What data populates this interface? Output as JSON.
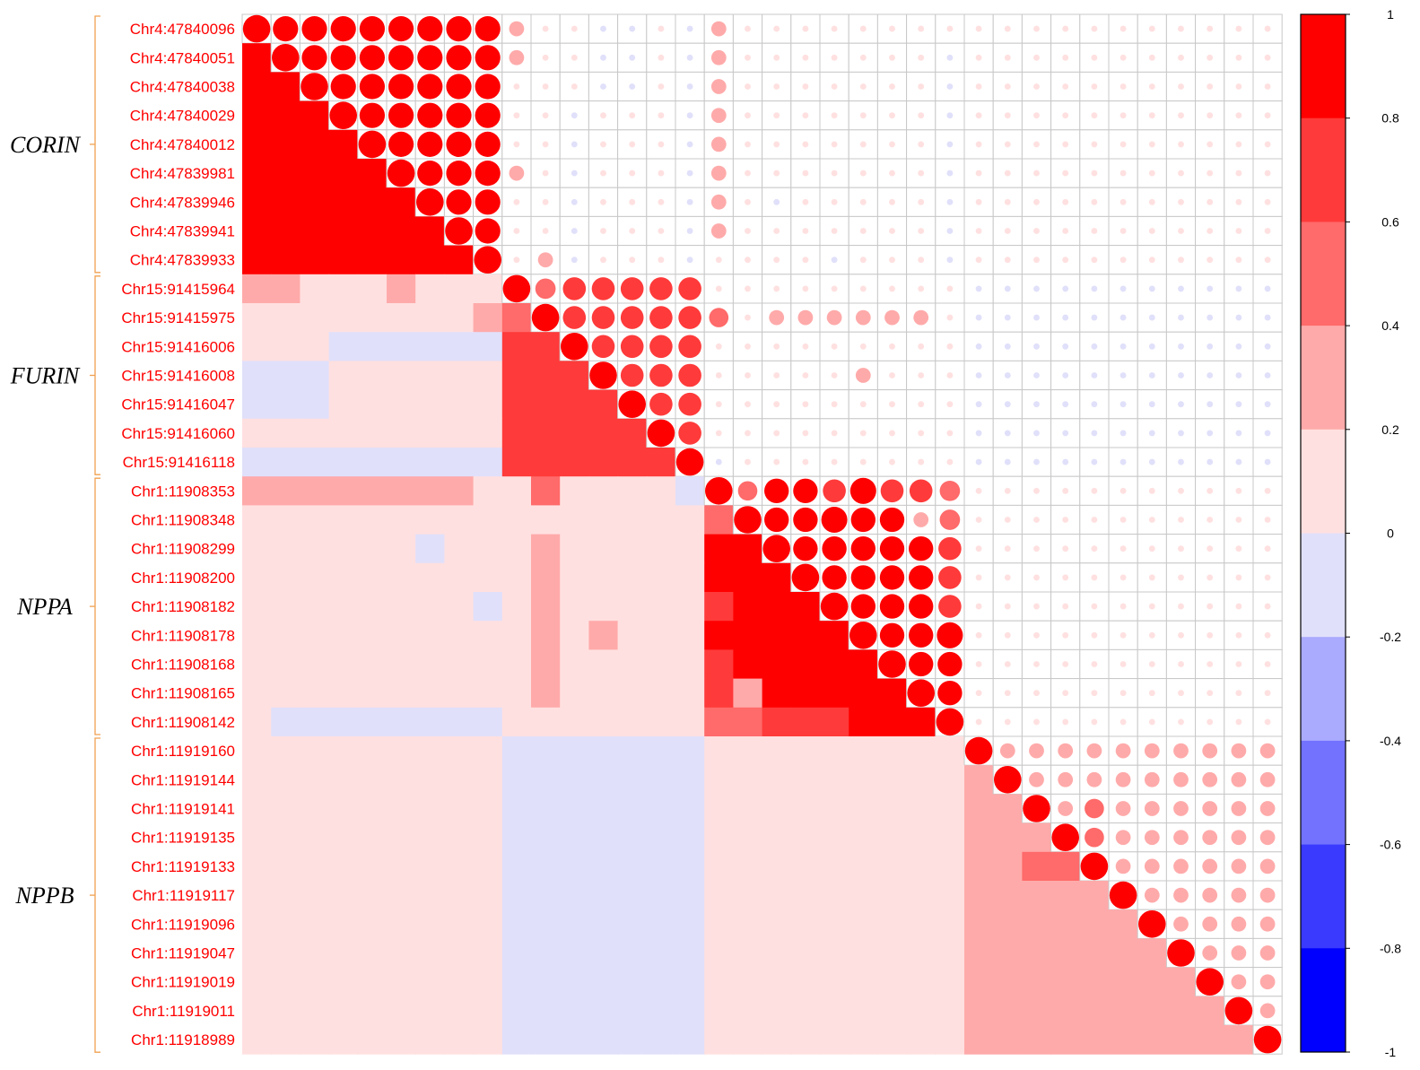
{
  "chart_data": {
    "type": "heatmap",
    "title": "",
    "xlabel": "",
    "ylabel": "",
    "variables": [
      "Chr4:47840096",
      "Chr4:47840051",
      "Chr4:47840038",
      "Chr4:47840029",
      "Chr4:47840012",
      "Chr4:47839981",
      "Chr4:47839946",
      "Chr4:47839941",
      "Chr4:47839933",
      "Chr15:91415964",
      "Chr15:91415975",
      "Chr15:91416006",
      "Chr15:91416008",
      "Chr15:91416047",
      "Chr15:91416060",
      "Chr15:91416118",
      "Chr1:11908353",
      "Chr1:11908348",
      "Chr1:11908299",
      "Chr1:11908200",
      "Chr1:11908182",
      "Chr1:11908178",
      "Chr1:11908168",
      "Chr1:11908165",
      "Chr1:11908142",
      "Chr1:11919160",
      "Chr1:11919144",
      "Chr1:11919141",
      "Chr1:11919135",
      "Chr1:11919133",
      "Chr1:11919117",
      "Chr1:11919096",
      "Chr1:11919047",
      "Chr1:11919019",
      "Chr1:11919011",
      "Chr1:11918989"
    ],
    "groups": [
      {
        "name": "CORIN",
        "start": 0,
        "end": 8
      },
      {
        "name": "FURIN",
        "start": 9,
        "end": 15
      },
      {
        "name": "NPPA",
        "start": 16,
        "end": 24
      },
      {
        "name": "NPPB",
        "start": 25,
        "end": 35
      }
    ],
    "colorbar": {
      "ticks": [
        "1",
        "0.8",
        "0.6",
        "0.4",
        "0.2",
        "0",
        "-0.2",
        "-0.4",
        "-0.6",
        "-0.8",
        "-1"
      ],
      "range": [
        -1,
        1
      ],
      "bins": 10
    },
    "lower_triangle": "colored squares",
    "upper_triangle": "circles sized by |r|",
    "colors": {
      "bins_high_to_low": [
        "#ff0000",
        "#ff3a3a",
        "#ff6a6a",
        "#ffaaaa",
        "#ffe0e0",
        "#e0e0fa",
        "#aaaaff",
        "#7272ff",
        "#3a3aff",
        "#0000ff"
      ],
      "grid": "#c8c8c8",
      "label": "#ff0000",
      "bracket": "#f0a050"
    },
    "block_values": [
      [
        0.85,
        0.05,
        0.05,
        0.05
      ],
      [
        0.05,
        0.7,
        0.05,
        -0.05
      ],
      [
        0.05,
        0.05,
        0.8,
        0.05
      ],
      [
        0.05,
        -0.05,
        0.05,
        0.3
      ]
    ],
    "overrides": [
      [
        9,
        0,
        0.3
      ],
      [
        9,
        1,
        0.3
      ],
      [
        9,
        5,
        0.3
      ],
      [
        10,
        8,
        0.3
      ],
      [
        10,
        9,
        0.55
      ],
      [
        11,
        3,
        -0.05
      ],
      [
        11,
        4,
        -0.05
      ],
      [
        11,
        5,
        -0.05
      ],
      [
        11,
        6,
        -0.05
      ],
      [
        11,
        7,
        -0.05
      ],
      [
        11,
        8,
        -0.05
      ],
      [
        12,
        0,
        -0.05
      ],
      [
        12,
        1,
        -0.05
      ],
      [
        12,
        2,
        -0.05
      ],
      [
        13,
        0,
        -0.05
      ],
      [
        13,
        1,
        -0.05
      ],
      [
        13,
        2,
        -0.05
      ],
      [
        15,
        0,
        -0.05
      ],
      [
        15,
        1,
        -0.05
      ],
      [
        15,
        2,
        -0.05
      ],
      [
        15,
        3,
        -0.05
      ],
      [
        15,
        4,
        -0.05
      ],
      [
        15,
        5,
        -0.05
      ],
      [
        15,
        6,
        -0.05
      ],
      [
        15,
        7,
        -0.05
      ],
      [
        15,
        8,
        -0.05
      ],
      [
        16,
        0,
        0.3
      ],
      [
        16,
        1,
        0.3
      ],
      [
        16,
        2,
        0.3
      ],
      [
        16,
        3,
        0.3
      ],
      [
        16,
        4,
        0.3
      ],
      [
        16,
        5,
        0.3
      ],
      [
        16,
        6,
        0.3
      ],
      [
        16,
        7,
        0.3
      ],
      [
        16,
        10,
        0.5
      ],
      [
        18,
        10,
        0.3
      ],
      [
        19,
        10,
        0.3
      ],
      [
        20,
        10,
        0.3
      ],
      [
        21,
        10,
        0.3
      ],
      [
        22,
        10,
        0.3
      ],
      [
        23,
        10,
        0.3
      ],
      [
        21,
        12,
        0.3
      ],
      [
        18,
        6,
        -0.05
      ],
      [
        20,
        8,
        -0.05
      ],
      [
        16,
        15,
        -0.05
      ],
      [
        24,
        1,
        -0.05
      ],
      [
        24,
        2,
        -0.05
      ],
      [
        24,
        3,
        -0.05
      ],
      [
        24,
        4,
        -0.05
      ],
      [
        24,
        5,
        -0.05
      ],
      [
        24,
        6,
        -0.05
      ],
      [
        24,
        7,
        -0.05
      ],
      [
        24,
        8,
        -0.05
      ],
      [
        17,
        16,
        0.5
      ],
      [
        23,
        16,
        0.7
      ],
      [
        23,
        17,
        0.3
      ],
      [
        24,
        16,
        0.55
      ],
      [
        24,
        17,
        0.55
      ],
      [
        24,
        18,
        0.7
      ],
      [
        24,
        19,
        0.7
      ],
      [
        24,
        20,
        0.7
      ],
      [
        24,
        21,
        0.9
      ],
      [
        21,
        16,
        0.9
      ],
      [
        22,
        16,
        0.7
      ],
      [
        20,
        17,
        0.9
      ],
      [
        20,
        16,
        0.7
      ],
      [
        26,
        25,
        0.3
      ],
      [
        27,
        25,
        0.3
      ],
      [
        27,
        26,
        0.3
      ],
      [
        28,
        25,
        0.3
      ],
      [
        28,
        26,
        0.3
      ],
      [
        28,
        27,
        0.3
      ],
      [
        29,
        25,
        0.3
      ],
      [
        29,
        26,
        0.3
      ],
      [
        29,
        27,
        0.5
      ],
      [
        29,
        28,
        0.5
      ],
      [
        30,
        27,
        0.3
      ],
      [
        30,
        28,
        0.3
      ],
      [
        30,
        29,
        0.3
      ],
      [
        31,
        29,
        0.3
      ],
      [
        34,
        32,
        0.3
      ],
      [
        35,
        32,
        0.3
      ]
    ]
  }
}
